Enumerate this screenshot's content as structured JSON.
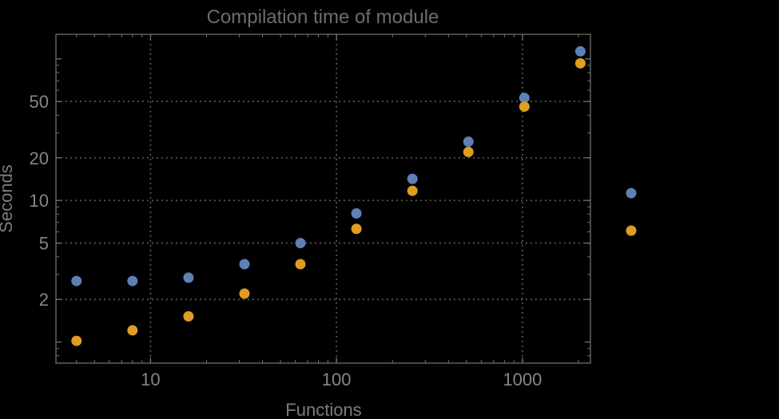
{
  "window": {
    "background": "#000000"
  },
  "chart_data": {
    "type": "scatter",
    "title": "Compilation time of module",
    "xlabel": "Functions",
    "ylabel": "Seconds",
    "xscale": "log",
    "yscale": "log",
    "xlim": [
      3.1,
      2320
    ],
    "ylim": [
      0.71,
      149
    ],
    "grid": {
      "style": "dotted",
      "color": "#5c5c5c",
      "on": true
    },
    "x": [
      4,
      8,
      16,
      32,
      64,
      128,
      256,
      512,
      1024,
      2048
    ],
    "series": [
      {
        "name": "series-blue",
        "color": "#5e81b5",
        "values": [
          2.7,
          2.7,
          2.85,
          3.55,
          5.0,
          8.1,
          14.2,
          26,
          53,
          113
        ]
      },
      {
        "name": "series-orange",
        "color": "#e19c24",
        "values": [
          1.02,
          1.21,
          1.52,
          2.2,
          3.55,
          6.3,
          11.7,
          22,
          46,
          93
        ]
      }
    ],
    "x_ticks": [
      10,
      100,
      1000
    ],
    "x_tick_labels": [
      "10",
      "100",
      "1000"
    ],
    "y_ticks": [
      2,
      5,
      10,
      20,
      50
    ],
    "y_tick_labels": [
      "2",
      "5",
      "10",
      "20",
      "50"
    ],
    "legend": {
      "position": "right-outside",
      "labels_visible": false,
      "markers": [
        {
          "name": "legend-marker-blue",
          "color": "#5e81b5"
        },
        {
          "name": "legend-marker-orange",
          "color": "#e19c24"
        }
      ]
    }
  },
  "styles": {
    "frame_color": "#6f6f6f",
    "grid_color": "#5c5c5c",
    "tick_label_color": "#868686",
    "axis_label_color": "#7d7d7d",
    "title_color": "#6d6d6d",
    "point_radius": 6.5
  }
}
